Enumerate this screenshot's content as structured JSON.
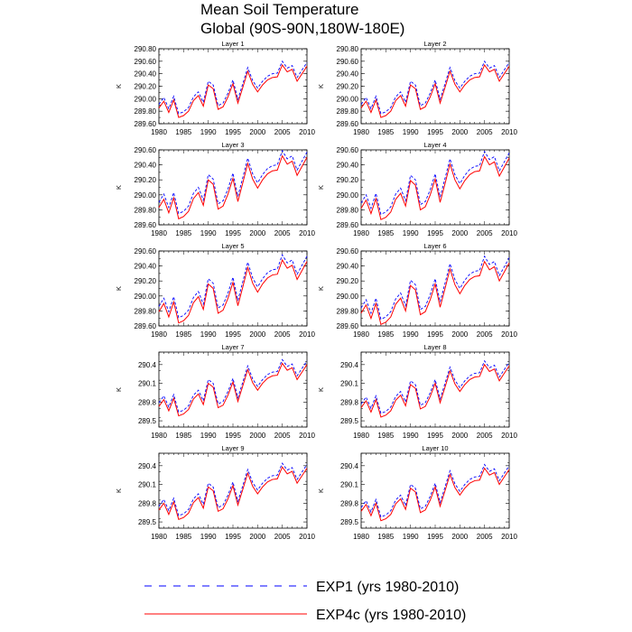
{
  "title": {
    "line1": "Mean Soil Temperature",
    "line2": "Global (90S-90N,180W-180E)"
  },
  "legend": [
    {
      "label": "EXP1 (yrs 1980-2010)",
      "color": "#0000ff",
      "dash": "dashed"
    },
    {
      "label": "EXP4c (yrs 1980-2010)",
      "color": "#ff0000",
      "dash": "solid"
    }
  ],
  "chart_data": {
    "type": "line",
    "x": [
      1980,
      1981,
      1982,
      1983,
      1984,
      1985,
      1986,
      1987,
      1988,
      1989,
      1990,
      1991,
      1992,
      1993,
      1994,
      1995,
      1996,
      1997,
      1998,
      1999,
      2000,
      2001,
      2002,
      2003,
      2004,
      2005,
      2006,
      2007,
      2008,
      2009,
      2010
    ],
    "xticks": [
      "1980",
      "1985",
      "1990",
      "1995",
      "2000",
      "2005",
      "2010"
    ],
    "xlim": [
      1980,
      2010
    ],
    "ylabel": "K",
    "base_red": [
      289.85,
      289.96,
      289.78,
      289.98,
      289.7,
      289.73,
      289.8,
      289.97,
      290.05,
      289.88,
      290.22,
      290.16,
      289.83,
      289.87,
      290.03,
      290.24,
      289.93,
      290.18,
      290.44,
      290.23,
      290.11,
      290.22,
      290.3,
      290.34,
      290.35,
      290.54,
      290.43,
      290.47,
      290.28,
      290.4,
      290.52
    ],
    "panels": [
      {
        "title": "Layer 1",
        "offset": 0.0,
        "blue_offset": 0.06,
        "ylim": [
          289.6,
          290.8
        ],
        "yticks": [
          "289.60",
          "289.80",
          "290.00",
          "290.20",
          "290.40",
          "290.60",
          "290.80"
        ]
      },
      {
        "title": "Layer 2",
        "offset": 0.0,
        "blue_offset": 0.06,
        "ylim": [
          289.6,
          290.8
        ],
        "yticks": [
          "289.60",
          "289.80",
          "290.00",
          "290.20",
          "290.40",
          "290.60",
          "290.80"
        ]
      },
      {
        "title": "Layer 3",
        "offset": -0.02,
        "blue_offset": 0.07,
        "ylim": [
          289.6,
          290.6
        ],
        "yticks": [
          "289.60",
          "289.80",
          "290.00",
          "290.20",
          "290.40",
          "290.60"
        ]
      },
      {
        "title": "Layer 4",
        "offset": -0.03,
        "blue_offset": 0.07,
        "ylim": [
          289.6,
          290.6
        ],
        "yticks": [
          "289.60",
          "289.80",
          "290.00",
          "290.20",
          "290.40",
          "290.60"
        ]
      },
      {
        "title": "Layer 5",
        "offset": -0.06,
        "blue_offset": 0.07,
        "ylim": [
          289.6,
          290.6
        ],
        "yticks": [
          "289.60",
          "289.80",
          "290.00",
          "290.20",
          "290.40",
          "290.60"
        ]
      },
      {
        "title": "Layer 6",
        "offset": -0.08,
        "blue_offset": 0.07,
        "ylim": [
          289.6,
          290.6
        ],
        "yticks": [
          "289.60",
          "289.80",
          "290.00",
          "290.20",
          "290.40",
          "290.60"
        ]
      },
      {
        "title": "Layer 7",
        "offset": -0.12,
        "blue_offset": 0.06,
        "ylim": [
          289.4,
          290.6
        ],
        "yticks": [
          "289.5",
          "289.8",
          "290.1",
          "290.4"
        ]
      },
      {
        "title": "Layer 8",
        "offset": -0.14,
        "blue_offset": 0.06,
        "ylim": [
          289.4,
          290.6
        ],
        "yticks": [
          "289.5",
          "289.8",
          "290.1",
          "290.4"
        ]
      },
      {
        "title": "Layer 9",
        "offset": -0.16,
        "blue_offset": 0.06,
        "ylim": [
          289.4,
          290.6
        ],
        "yticks": [
          "289.5",
          "289.8",
          "290.1",
          "290.4"
        ]
      },
      {
        "title": "Layer 10",
        "offset": -0.18,
        "blue_offset": 0.06,
        "ylim": [
          289.4,
          290.6
        ],
        "yticks": [
          "289.5",
          "289.8",
          "290.1",
          "290.4"
        ]
      }
    ]
  }
}
